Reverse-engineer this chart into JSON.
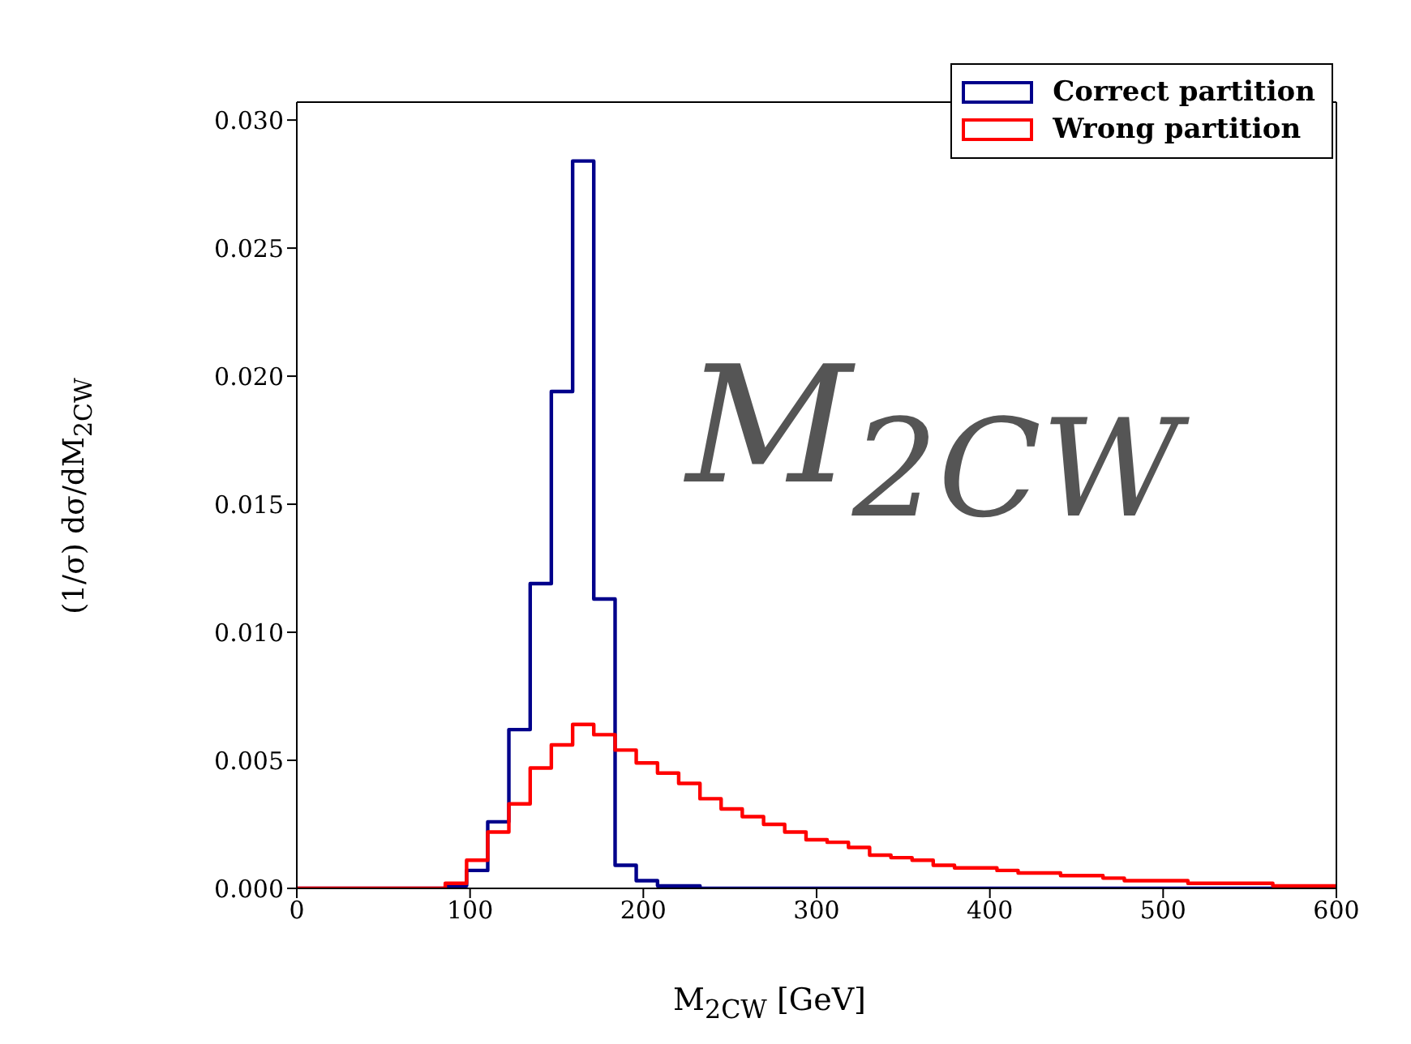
{
  "chart_data": {
    "type": "histogram",
    "xlabel": "M$_{2CW}$ [GeV]",
    "ylabel": "(1/σ) dσ/dM$_{2CW}$",
    "annotations": [
      "M$_{2CW}$"
    ],
    "bins": [
      0,
      12.2,
      24.5,
      36.7,
      49,
      61.2,
      73.5,
      85.7,
      98,
      110.2,
      122.4,
      134.7,
      146.9,
      159.2,
      171.4,
      183.7,
      195.9,
      208.2,
      220.4,
      232.7,
      244.9,
      257.1,
      269.4,
      281.6,
      293.9,
      306.1,
      318.4,
      330.6,
      342.9,
      355.1,
      367.3,
      379.6,
      391.8,
      404.1,
      416.3,
      428.6,
      440.8,
      453.1,
      465.3,
      477.6,
      489.8,
      502,
      514.3,
      526.5,
      538.8,
      551,
      563.3,
      575.5,
      587.8,
      600
    ],
    "series": [
      {
        "name": "Correct partition",
        "color": "#00008b",
        "values": [
          0,
          0,
          0,
          0,
          0,
          0,
          0,
          0.0001,
          0.0007,
          0.0026,
          0.0062,
          0.0119,
          0.0194,
          0.0284,
          0.0113,
          0.0009,
          0.0003,
          0.0001,
          0.0001,
          0,
          0,
          0,
          0,
          0,
          0,
          0,
          0,
          0,
          0,
          0,
          0,
          0,
          0,
          0,
          0,
          0,
          0,
          0,
          0,
          0,
          0,
          0,
          0,
          0,
          0,
          0,
          0,
          0,
          0
        ]
      },
      {
        "name": "Wrong partition",
        "color": "#ff0000",
        "values": [
          0,
          0,
          0,
          0,
          0,
          0,
          0,
          0.0002,
          0.0011,
          0.0022,
          0.0033,
          0.0047,
          0.0056,
          0.0064,
          0.006,
          0.0054,
          0.0049,
          0.0045,
          0.0041,
          0.0035,
          0.0031,
          0.0028,
          0.0025,
          0.0022,
          0.0019,
          0.0018,
          0.0016,
          0.0013,
          0.0012,
          0.0011,
          0.0009,
          0.0008,
          0.0008,
          0.0007,
          0.0006,
          0.0006,
          0.0005,
          0.0005,
          0.0004,
          0.0003,
          0.0003,
          0.0003,
          0.0002,
          0.0002,
          0.0002,
          0.0002,
          0.0001,
          0.0001,
          0.0001
        ]
      }
    ],
    "xlim": [
      0,
      600
    ],
    "xticks": [
      0,
      100,
      200,
      300,
      400,
      500,
      600
    ],
    "ylim": [
      0,
      0.0307
    ],
    "yticks": [
      {
        "value": 0,
        "label": "0.000"
      },
      {
        "value": 0.005,
        "label": "0.005"
      },
      {
        "value": 0.01,
        "label": "0.010"
      },
      {
        "value": 0.015,
        "label": "0.015"
      },
      {
        "value": 0.02,
        "label": "0.020"
      },
      {
        "value": 0.025,
        "label": "0.025"
      },
      {
        "value": 0.03,
        "label": "0.030"
      }
    ],
    "legend": "top right",
    "grid": false
  }
}
